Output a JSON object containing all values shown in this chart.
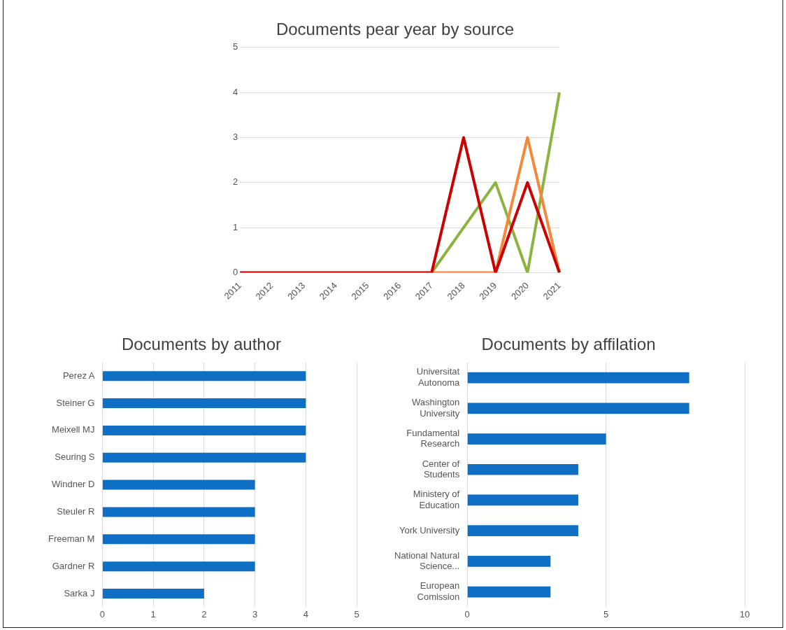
{
  "chart_data": [
    {
      "type": "line",
      "title": "Documents pear year by source",
      "categories": [
        "2011",
        "2012",
        "2013",
        "2014",
        "2015",
        "2016",
        "2017",
        "2018",
        "2019",
        "2020",
        "2021"
      ],
      "series": [
        {
          "color": "#cc0000",
          "values": [
            0,
            0,
            0,
            0,
            0,
            0,
            0,
            3,
            0,
            2,
            0
          ]
        },
        {
          "color": "#f5873a",
          "values": [
            null,
            null,
            null,
            null,
            null,
            null,
            0,
            0,
            0,
            3,
            0
          ]
        },
        {
          "color": "#8db33f",
          "values": [
            null,
            null,
            null,
            null,
            null,
            null,
            0,
            1,
            2,
            0,
            4
          ]
        }
      ],
      "ylim": [
        0,
        5
      ],
      "yticks": [
        0,
        1,
        2,
        3,
        4,
        5
      ],
      "grid": "y",
      "legend": false,
      "marker": "none",
      "line_style": "solid"
    },
    {
      "type": "bar",
      "orientation": "horizontal",
      "title": "Documents by author",
      "categories": [
        "Perez A",
        "Steiner G",
        "Meixell MJ",
        "Seuring S",
        "Windner D",
        "Steuler R",
        "Freeman M",
        "Gardner R",
        "Sarka J"
      ],
      "values": [
        4,
        4,
        4,
        4,
        3,
        3,
        3,
        3,
        2
      ],
      "color": "#0e6fc4",
      "xlim": [
        0,
        5
      ],
      "xticks": [
        0,
        1,
        2,
        3,
        4,
        5
      ],
      "grid": "x",
      "legend": false
    },
    {
      "type": "bar",
      "orientation": "horizontal",
      "title": "Documents by affilation",
      "categories": [
        "Universitat Autonoma",
        "Washington University",
        "Fundamental Research",
        "Center of Students",
        "Ministery of Education",
        "York University",
        "National Natural Science...",
        "European Comission"
      ],
      "values": [
        8,
        8,
        5,
        4,
        4,
        4,
        3,
        3
      ],
      "color": "#0e6fc4",
      "xlim": [
        0,
        10
      ],
      "xticks": [
        0,
        5,
        10
      ],
      "grid": "x",
      "legend": false
    }
  ]
}
